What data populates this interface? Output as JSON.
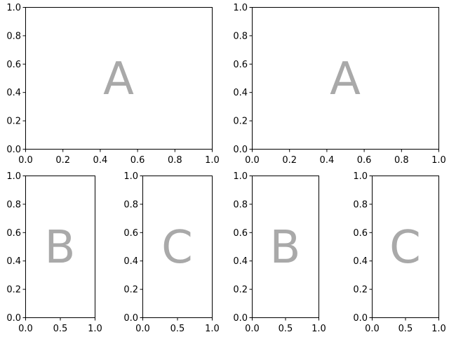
{
  "chart_data": [
    {
      "type": "scatter",
      "panel": "A",
      "label": "A",
      "xlim": [
        0,
        1
      ],
      "ylim": [
        0,
        1
      ],
      "xticks": [
        "0.0",
        "0.2",
        "0.4",
        "0.6",
        "0.8",
        "1.0"
      ],
      "yticks": [
        "0.0",
        "0.2",
        "0.4",
        "0.6",
        "0.8",
        "1.0"
      ],
      "grid": false,
      "series": []
    },
    {
      "type": "scatter",
      "panel": "B",
      "label": "B",
      "xlim": [
        0,
        1
      ],
      "ylim": [
        0,
        1
      ],
      "xticks": [
        "0.0",
        "0.5",
        "1.0"
      ],
      "yticks": [
        "0.0",
        "0.2",
        "0.4",
        "0.6",
        "0.8",
        "1.0"
      ],
      "grid": false,
      "series": []
    },
    {
      "type": "scatter",
      "panel": "C",
      "label": "C",
      "xlim": [
        0,
        1
      ],
      "ylim": [
        0,
        1
      ],
      "xticks": [
        "0.0",
        "0.5",
        "1.0"
      ],
      "yticks": [
        "0.0",
        "0.2",
        "0.4",
        "0.6",
        "0.8",
        "1.0"
      ],
      "grid": false,
      "series": []
    },
    {
      "type": "scatter",
      "panel": "A",
      "label": "A",
      "xlim": [
        0,
        1
      ],
      "ylim": [
        0,
        1
      ],
      "xticks": [
        "0.0",
        "0.2",
        "0.4",
        "0.6",
        "0.8",
        "1.0"
      ],
      "yticks": [
        "0.0",
        "0.2",
        "0.4",
        "0.6",
        "0.8",
        "1.0"
      ],
      "grid": false,
      "series": []
    },
    {
      "type": "scatter",
      "panel": "B",
      "label": "B",
      "xlim": [
        0,
        1
      ],
      "ylim": [
        0,
        1
      ],
      "xticks": [
        "0.0",
        "0.5",
        "1.0"
      ],
      "yticks": [
        "0.0",
        "0.2",
        "0.4",
        "0.6",
        "0.8",
        "1.0"
      ],
      "grid": false,
      "series": []
    },
    {
      "type": "scatter",
      "panel": "C",
      "label": "C",
      "xlim": [
        0,
        1
      ],
      "ylim": [
        0,
        1
      ],
      "xticks": [
        "0.0",
        "0.5",
        "1.0"
      ],
      "yticks": [
        "0.0",
        "0.2",
        "0.4",
        "0.6",
        "0.8",
        "1.0"
      ],
      "grid": false,
      "series": []
    }
  ],
  "colors": {
    "background": "#ffffff",
    "axes": "#000000",
    "panel_label": "#a9a9a9"
  }
}
